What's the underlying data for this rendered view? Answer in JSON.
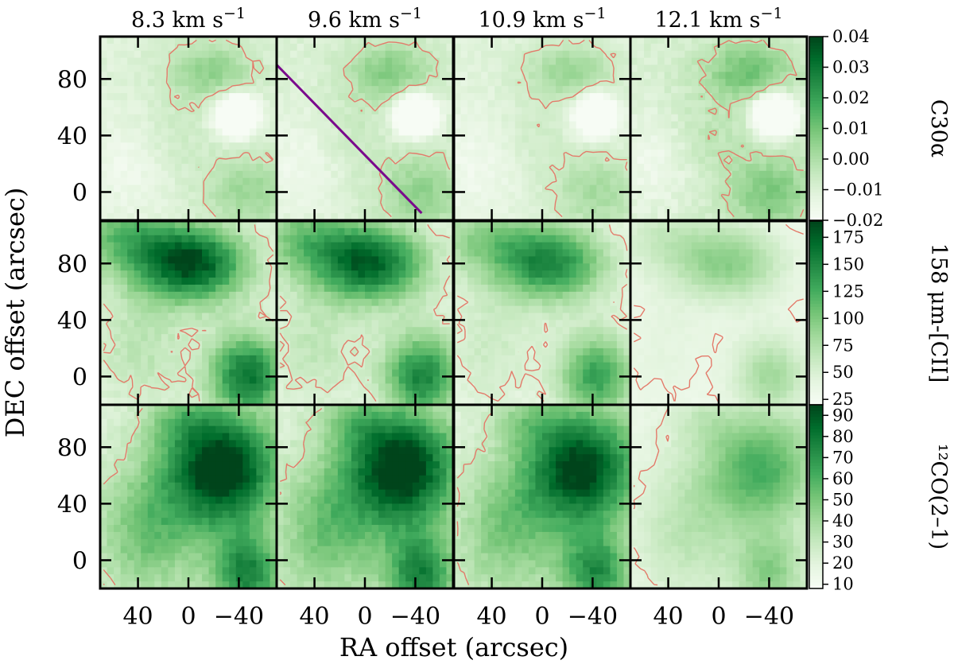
{
  "chart_data": {
    "type": "heatmap",
    "layout": "3 rows x 4 columns of channel maps",
    "xlabel": "RA offset (arcsec)",
    "ylabel": "DEC offset (arcsec)",
    "xlim": [
      70,
      -70
    ],
    "ylim": [
      -20,
      110
    ],
    "x_ticks": [
      40,
      0,
      -40
    ],
    "x_tick_labels": [
      "40",
      "0",
      "−40"
    ],
    "y_ticks": [
      0,
      40,
      80
    ],
    "y_tick_labels": [
      "0",
      "40",
      "80"
    ],
    "velocities": [
      {
        "value": 8.3,
        "label": "8.3 km s",
        "sup": "−1"
      },
      {
        "value": 9.6,
        "label": "9.6 km s",
        "sup": "−1"
      },
      {
        "value": 10.9,
        "label": "10.9 km s",
        "sup": "−1"
      },
      {
        "value": 12.1,
        "label": "12.1 km s",
        "sup": "−1"
      }
    ],
    "colormap": "greens",
    "contour_color": "#e37a6a",
    "cut_line": {
      "color": "#7a0a8c",
      "x": [
        70,
        -45
      ],
      "y": [
        90,
        -15
      ],
      "panel": "row 0, col 1"
    },
    "rows": [
      {
        "name": "C30α",
        "colorbar_label": "C30α",
        "colorbar_ticks": [
          0.04,
          0.03,
          0.02,
          0.01,
          0.0,
          -0.01,
          -0.02
        ],
        "colorbar_tick_labels": [
          "0.04",
          "0.03",
          "0.02",
          "0.01",
          "0.00",
          "−0.01",
          "−0.02"
        ],
        "vmin": -0.02,
        "vmax": 0.04,
        "panel_levels": [
          0.65,
          0.7,
          0.6,
          0.8
        ],
        "cmap_gamma": 0.95,
        "features": [
          {
            "x": -20,
            "y": 85,
            "a": 0.35,
            "sx": 25,
            "sy": 15
          },
          {
            "x": -45,
            "y": 0,
            "a": 0.3,
            "sx": 25,
            "sy": 20
          },
          {
            "x": -40,
            "y": 55,
            "a": -0.75,
            "sx": 11,
            "sy": 10
          },
          {
            "x": 50,
            "y": 20,
            "a": -0.12,
            "sx": 25,
            "sy": 25
          },
          {
            "x": 10,
            "y": 40,
            "a": 0.1,
            "sx": 20,
            "sy": 20
          }
        ]
      },
      {
        "name": "158 μm-[CII]",
        "colorbar_label": "158 μm-[CII]",
        "colorbar_ticks": [
          175,
          150,
          125,
          100,
          75,
          50,
          25
        ],
        "colorbar_tick_labels": [
          "175",
          "150",
          "125",
          "100",
          "75",
          "50",
          "25"
        ],
        "vmin": 20,
        "vmax": 190,
        "panel_levels": [
          0.8,
          0.75,
          0.65,
          0.4
        ],
        "cmap_gamma": 1.2,
        "features": [
          {
            "x": -5,
            "y": 80,
            "a": 0.85,
            "sx": 32,
            "sy": 20
          },
          {
            "x": -45,
            "y": 0,
            "a": 0.75,
            "sx": 22,
            "sy": 22
          },
          {
            "x": 50,
            "y": 100,
            "a": 0.4,
            "sx": 30,
            "sy": 20
          },
          {
            "x": 40,
            "y": 20,
            "a": 0.2,
            "sx": 25,
            "sy": 30
          }
        ]
      },
      {
        "name": "¹²CO(2–1)",
        "colorbar_label": "¹²CO(2–1)",
        "colorbar_ticks": [
          90,
          80,
          70,
          60,
          50,
          40,
          30,
          20,
          10
        ],
        "colorbar_tick_labels": [
          "90",
          "80",
          "70",
          "60",
          "50",
          "40",
          "30",
          "20",
          "10"
        ],
        "vmin": 8,
        "vmax": 95,
        "panel_levels": [
          0.85,
          0.85,
          0.8,
          0.5
        ],
        "cmap_gamma": 1.1,
        "features": [
          {
            "x": -30,
            "y": 65,
            "a": 0.9,
            "sx": 32,
            "sy": 30
          },
          {
            "x": -45,
            "y": -10,
            "a": 0.6,
            "sx": 20,
            "sy": 20
          },
          {
            "x": 30,
            "y": 20,
            "a": 0.35,
            "sx": 30,
            "sy": 35
          },
          {
            "x": 10,
            "y": 100,
            "a": 0.2,
            "sx": 20,
            "sy": 15
          }
        ]
      }
    ]
  }
}
